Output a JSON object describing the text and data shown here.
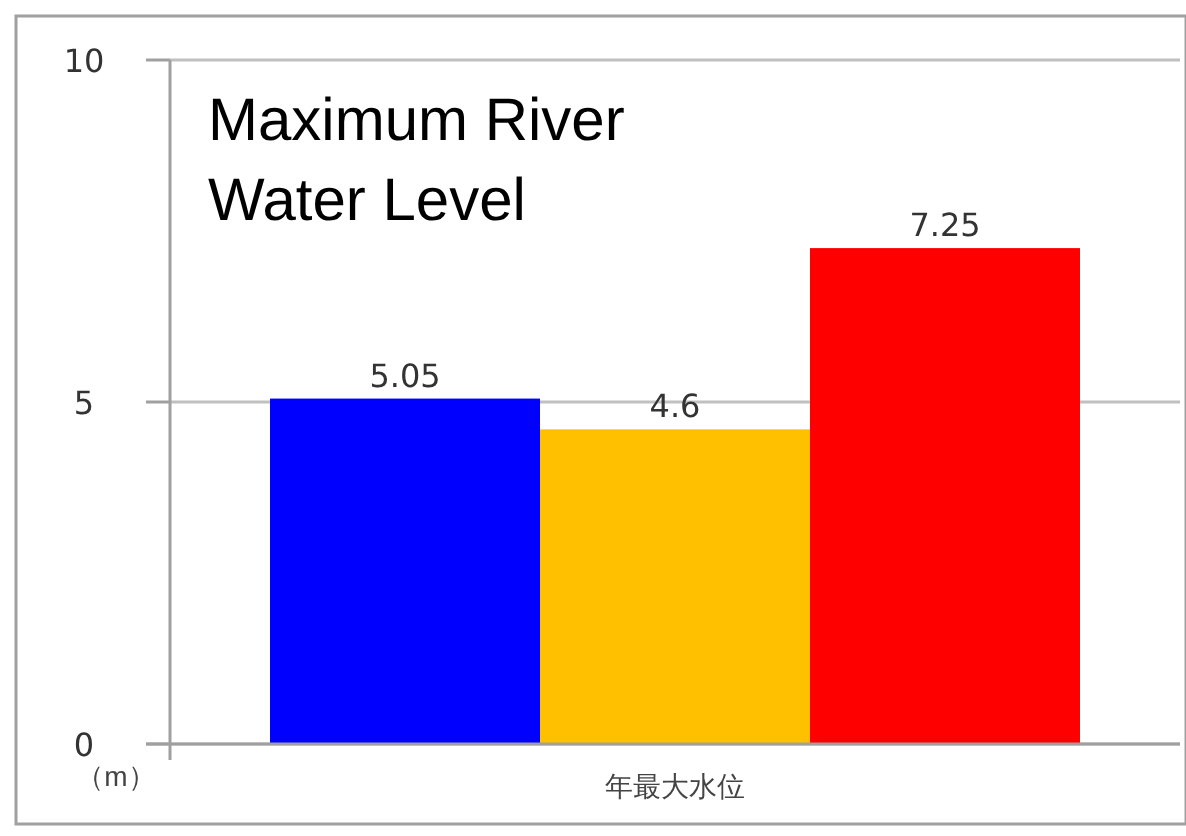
{
  "chart_data": {
    "type": "bar",
    "title": "Maximum River Water Level",
    "ylabel": "（m）",
    "categories": [
      "年最大水位"
    ],
    "series": [
      {
        "color": "#0000ff",
        "values": [
          5.05
        ]
      },
      {
        "color": "#ffc000",
        "values": [
          4.6
        ]
      },
      {
        "color": "#ff0000",
        "values": [
          7.25
        ]
      }
    ],
    "ylim": [
      0,
      10
    ],
    "yticks": [
      0,
      5,
      10
    ],
    "grid": "y",
    "data_labels": true
  }
}
